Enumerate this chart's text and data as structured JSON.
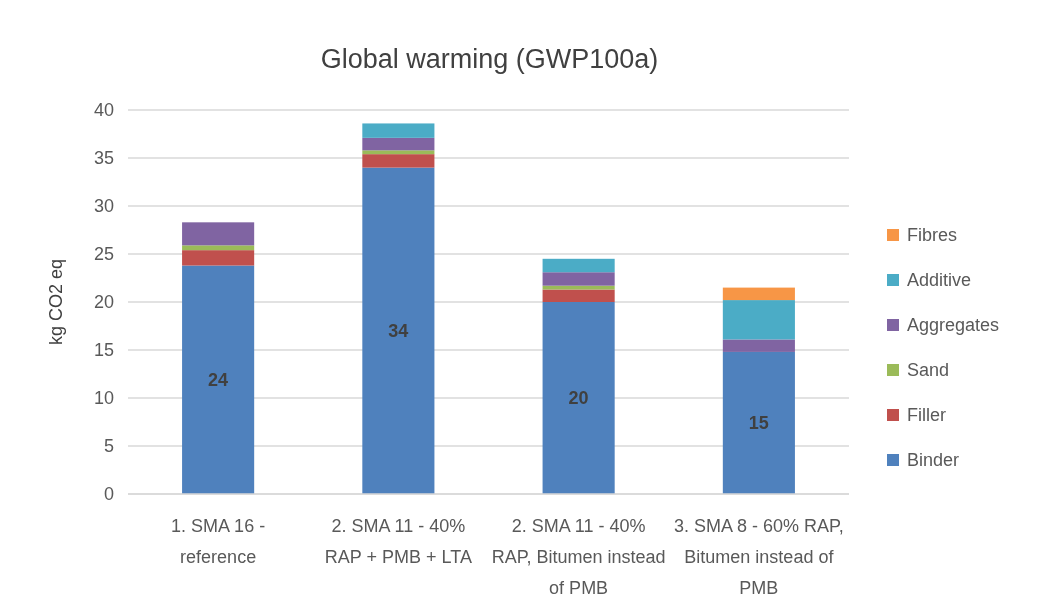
{
  "chart_data": {
    "type": "bar",
    "title": "Global warming (GWP100a)",
    "ylabel": "kg CO2 eq",
    "categories": [
      "1. SMA 16 - reference",
      "2. SMA 11 - 40% RAP + PMB + LTA",
      "2. SMA 11 - 40% RAP, Bitumen instead of PMB",
      "3. SMA 8 - 60% RAP, Bitumen instead of PMB"
    ],
    "stacked": true,
    "ylim": [
      0,
      40
    ],
    "yticks": [
      0,
      5,
      10,
      15,
      20,
      25,
      30,
      35,
      40
    ],
    "grid": "y",
    "legend": "right",
    "series": [
      {
        "name": "Binder",
        "color": "#4f81bd",
        "values": [
          23.8,
          34.0,
          20.0,
          14.8
        ],
        "value_labels": [
          "24",
          "34",
          "20",
          "15"
        ]
      },
      {
        "name": "Filler",
        "color": "#c0504d",
        "values": [
          1.6,
          1.4,
          1.3,
          null
        ]
      },
      {
        "name": "Sand",
        "color": "#9bbb59",
        "values": [
          0.5,
          0.4,
          0.4,
          null
        ]
      },
      {
        "name": "Aggregates",
        "color": "#8064a2",
        "values": [
          2.4,
          1.3,
          1.4,
          1.3
        ]
      },
      {
        "name": "Additive",
        "color": "#4bacc6",
        "values": [
          null,
          1.5,
          1.4,
          4.1
        ]
      },
      {
        "name": "Fibres",
        "color": "#f79646",
        "values": [
          null,
          null,
          null,
          1.3
        ]
      }
    ]
  }
}
